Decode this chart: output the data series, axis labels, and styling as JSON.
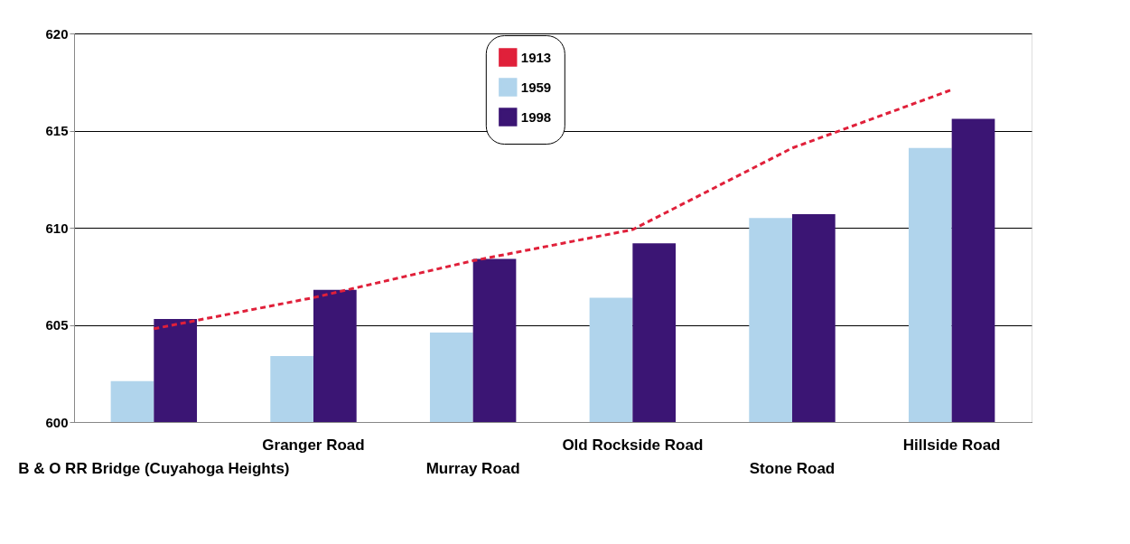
{
  "chart_data": {
    "type": "bar",
    "categories": [
      "B & O RR Bridge (Cuyahoga Heights)",
      "Granger Road",
      "Murray Road",
      "Old Rockside Road",
      "Stone Road",
      "Hillside Road"
    ],
    "series": [
      {
        "name": "1913",
        "type": "line",
        "color": "#e0203a",
        "line_style": "dashed",
        "values": [
          604.8,
          606.4,
          608.3,
          609.9,
          614.1,
          617.1
        ]
      },
      {
        "name": "1959",
        "color": "#b0d4ec",
        "values": [
          602.1,
          603.4,
          604.6,
          606.4,
          610.5,
          614.1
        ]
      },
      {
        "name": "1998",
        "color": "#3b1574",
        "values": [
          605.3,
          606.8,
          608.4,
          609.2,
          610.7,
          615.6
        ]
      }
    ],
    "ylim": [
      600,
      620
    ],
    "yticks": [
      600,
      605,
      610,
      615,
      620
    ],
    "grid": "y",
    "legend": "top"
  }
}
